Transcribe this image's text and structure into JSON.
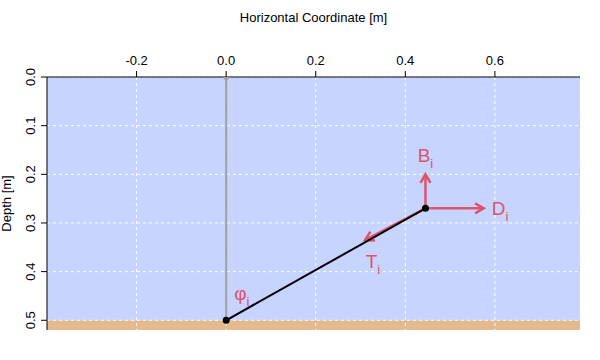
{
  "chart_data": {
    "type": "line",
    "xlabel": "Horizontal Coordinate [m]",
    "ylabel": "Depth [m]",
    "xlim": [
      -0.4,
      0.79
    ],
    "ylim": [
      0,
      0.52
    ],
    "xticks": [
      -0.2,
      {
        "value": 0,
        "label": "0.0"
      },
      0.2,
      0.4,
      0.6
    ],
    "yticks": [
      {
        "value": 0,
        "label": "0.0"
      },
      0.1,
      0.2,
      0.3,
      0.4,
      0.5
    ],
    "grid": true,
    "water": {
      "color": "#c6d4ff",
      "depth": [
        0,
        0.5
      ]
    },
    "seabed": {
      "color": "#e4b98e",
      "depth": [
        0.5,
        0.52
      ]
    },
    "series": [
      {
        "color": "#a0a0a0",
        "x": [
          0,
          0
        ],
        "values": [
          0,
          0.5
        ],
        "marker": "circle"
      },
      {
        "color": "#000000",
        "x": [
          0,
          0.445
        ],
        "values": [
          0.5,
          0.27
        ],
        "marker": "circle"
      }
    ],
    "arrows": {
      "color": "#df536b",
      "items": [
        {
          "label": "B",
          "subscript": "i",
          "from": [
            0.445,
            0.27
          ],
          "to": [
            0.445,
            0.2
          ]
        },
        {
          "label": "D",
          "subscript": "i",
          "from": [
            0.445,
            0.27
          ],
          "to": [
            0.575,
            0.27
          ]
        },
        {
          "label": "T",
          "subscript": "i",
          "from": [
            0.445,
            0.27
          ],
          "to": [
            0.31,
            0.335
          ]
        }
      ]
    },
    "annotations": [
      {
        "text": "φ",
        "subscript": "i"
      }
    ]
  }
}
